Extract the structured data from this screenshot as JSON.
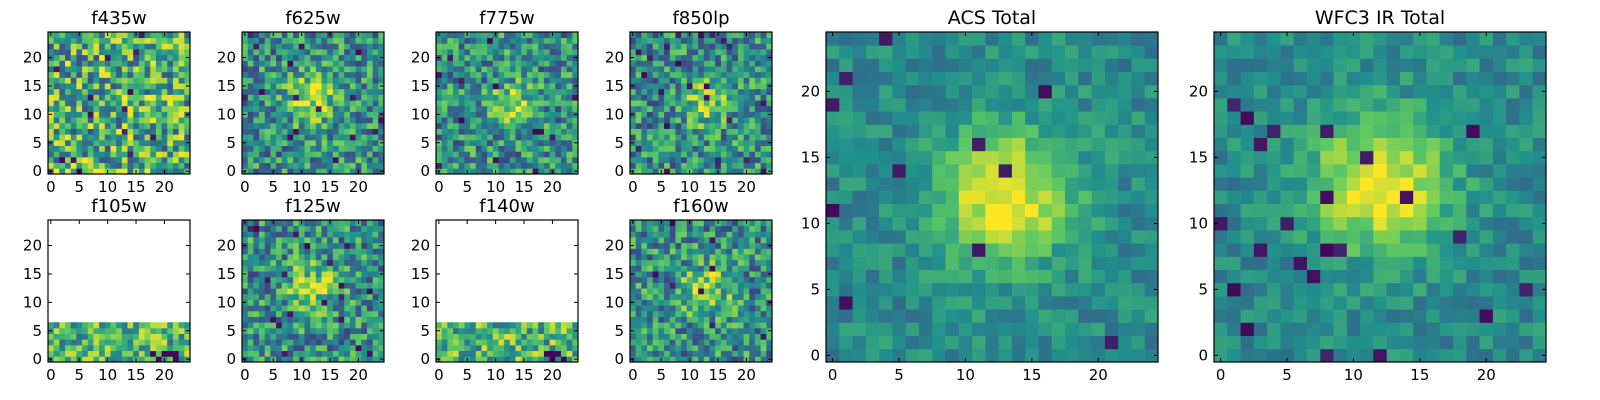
{
  "figure": {
    "colormap": [
      "#440154",
      "#3b528b",
      "#21918c",
      "#5ec962",
      "#fde725"
    ],
    "seed": 20241
  },
  "chart_data": [
    {
      "type": "heatmap",
      "title": "f435w",
      "xticks": [
        0,
        5,
        10,
        15,
        20
      ],
      "yticks": [
        0,
        5,
        10,
        15,
        20
      ],
      "grid": [
        25,
        25
      ],
      "structure": "noise",
      "blob": null,
      "coverage": "full"
    },
    {
      "type": "heatmap",
      "title": "f625w",
      "xticks": [
        0,
        5,
        10,
        15,
        20
      ],
      "yticks": [
        0,
        5,
        10,
        15,
        20
      ],
      "grid": [
        25,
        25
      ],
      "structure": "noisy-source",
      "blob": [
        12,
        13,
        3.0
      ],
      "coverage": "full"
    },
    {
      "type": "heatmap",
      "title": "f775w",
      "xticks": [
        0,
        5,
        10,
        15,
        20
      ],
      "yticks": [
        0,
        5,
        10,
        15,
        20
      ],
      "grid": [
        25,
        25
      ],
      "structure": "noisy-source",
      "blob": [
        13,
        12,
        2.5
      ],
      "coverage": "full"
    },
    {
      "type": "heatmap",
      "title": "f850lp",
      "xticks": [
        0,
        5,
        10,
        15,
        20
      ],
      "yticks": [
        0,
        5,
        10,
        15,
        20
      ],
      "grid": [
        25,
        25
      ],
      "structure": "noisy-source",
      "blob": [
        13,
        12,
        2.5
      ],
      "coverage": "full"
    },
    {
      "type": "heatmap",
      "title": "f105w",
      "xticks": [
        0,
        5,
        10,
        15,
        20
      ],
      "yticks": [
        0,
        5,
        10,
        15,
        20
      ],
      "grid": [
        25,
        25
      ],
      "structure": "noise",
      "blob": null,
      "coverage": "rows 0-6 only"
    },
    {
      "type": "heatmap",
      "title": "f125w",
      "xticks": [
        0,
        5,
        10,
        15,
        20
      ],
      "yticks": [
        0,
        5,
        10,
        15,
        20
      ],
      "grid": [
        25,
        25
      ],
      "structure": "noisy-source",
      "blob": [
        12,
        13,
        3.0
      ],
      "coverage": "full"
    },
    {
      "type": "heatmap",
      "title": "f140w",
      "xticks": [
        0,
        5,
        10,
        15,
        20
      ],
      "yticks": [
        0,
        5,
        10,
        15,
        20
      ],
      "grid": [
        25,
        25
      ],
      "structure": "noise",
      "blob": null,
      "coverage": "rows 0-6 only"
    },
    {
      "type": "heatmap",
      "title": "f160w",
      "xticks": [
        0,
        5,
        10,
        15,
        20
      ],
      "yticks": [
        0,
        5,
        10,
        15,
        20
      ],
      "grid": [
        25,
        25
      ],
      "structure": "noisy-source",
      "blob": [
        13,
        12,
        3.0
      ],
      "coverage": "full"
    },
    {
      "type": "heatmap",
      "title": "ACS Total",
      "xticks": [
        0,
        5,
        10,
        15,
        20
      ],
      "yticks": [
        0,
        5,
        10,
        15,
        20
      ],
      "grid": [
        25,
        25
      ],
      "structure": "source",
      "blob": [
        13,
        12,
        3.5
      ],
      "coverage": "full"
    },
    {
      "type": "heatmap",
      "title": "WFC3 IR Total",
      "xticks": [
        0,
        5,
        10,
        15,
        20
      ],
      "yticks": [
        0,
        5,
        10,
        15,
        20
      ],
      "grid": [
        25,
        25
      ],
      "structure": "source",
      "blob": [
        12,
        13,
        3.5
      ],
      "coverage": "full"
    }
  ]
}
